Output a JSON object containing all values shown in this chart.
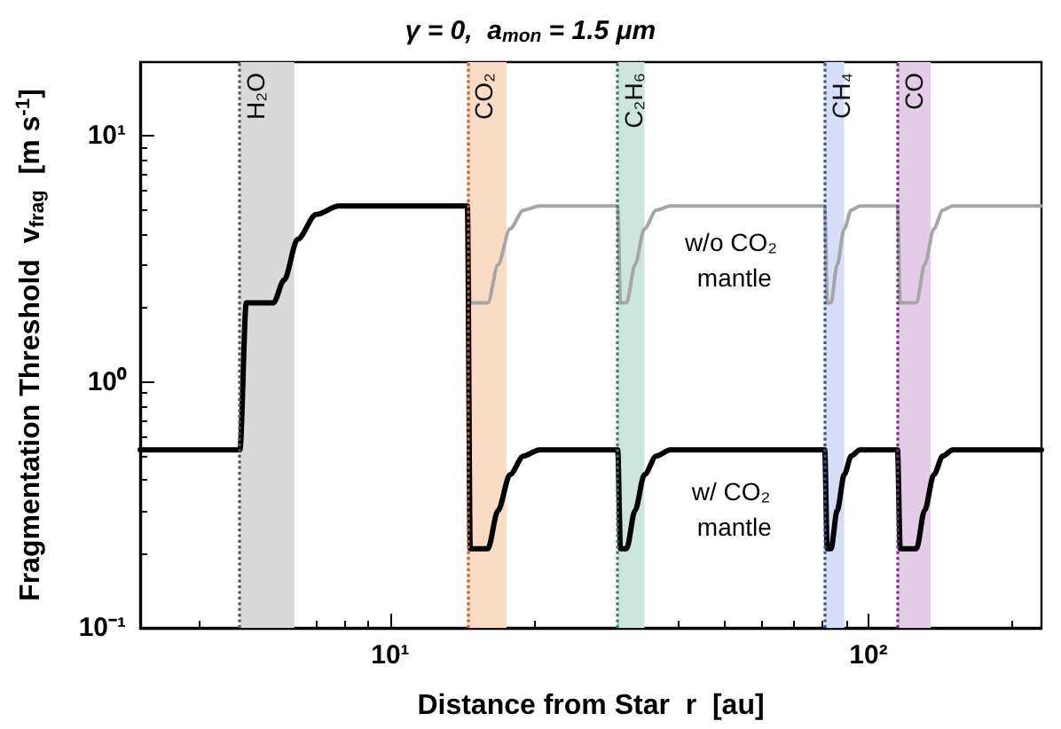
{
  "chart_data": {
    "type": "line",
    "title": "γ = 0,  a$_{mon}$ = 1.5 μm",
    "xlabel": "Distance from Star  r  [au]",
    "ylabel": "Fragmentation Threshold  v$_{frag}$  [m s$^{-1}$]",
    "log": "xy",
    "grid": false,
    "legend": false,
    "marker": "none",
    "line_style": "solid",
    "xlim": [
      3,
      230
    ],
    "ylim": [
      0.1,
      20
    ],
    "xticks": [
      {
        "value": 10,
        "label": "10¹"
      },
      {
        "value": 100,
        "label": "10²"
      }
    ],
    "yticks": [
      {
        "value": 0.1,
        "label": "10⁻¹"
      },
      {
        "value": 1,
        "label": "10⁰"
      },
      {
        "value": 10,
        "label": "10¹"
      }
    ],
    "x": [
      3,
      4.85,
      5.0,
      5.7,
      6.0,
      6.4,
      7.0,
      7.8,
      14.5,
      14.7,
      16.0,
      16.8,
      17.8,
      19.0,
      20.5,
      29.9,
      30.3,
      31.2,
      32.5,
      34,
      36,
      38.5,
      81,
      82,
      83.5,
      86,
      89,
      92,
      96,
      115,
      116.5,
      126,
      131,
      137,
      143,
      150,
      230
    ],
    "series": [
      {
        "name": "w/o CO₂ mantle",
        "color": "#a6a6a6",
        "values": [
          null,
          null,
          null,
          null,
          null,
          null,
          null,
          null,
          5.2,
          2.1,
          2.1,
          3.0,
          4.2,
          5.0,
          5.2,
          5.2,
          2.1,
          2.1,
          3.0,
          4.2,
          5.0,
          5.2,
          5.2,
          2.1,
          2.1,
          3.0,
          4.2,
          5.0,
          5.2,
          5.2,
          2.1,
          2.1,
          3.0,
          4.2,
          5.0,
          5.2,
          5.2
        ]
      },
      {
        "name": "w/ CO₂ mantle",
        "color": "#000000",
        "values": [
          0.53,
          0.53,
          2.1,
          2.1,
          2.6,
          3.8,
          4.8,
          5.2,
          5.2,
          0.21,
          0.21,
          0.3,
          0.42,
          0.5,
          0.53,
          0.53,
          0.21,
          0.21,
          0.3,
          0.42,
          0.5,
          0.53,
          0.53,
          0.21,
          0.21,
          0.3,
          0.42,
          0.5,
          0.53,
          0.53,
          0.21,
          0.21,
          0.3,
          0.42,
          0.5,
          0.53,
          0.53
        ]
      }
    ],
    "bands": [
      {
        "axis": "x",
        "from": 4.85,
        "to": 6.3,
        "label": "H₂O",
        "color": "#d9d9d9"
      },
      {
        "axis": "x",
        "from": 14.5,
        "to": 17.5,
        "label": "CO₂",
        "color": "#f9dcc4"
      },
      {
        "axis": "x",
        "from": 29.9,
        "to": 34,
        "label": "C₂H₆",
        "color": "#cce6de"
      },
      {
        "axis": "x",
        "from": 81,
        "to": 89,
        "label": "CH₄",
        "color": "#d6def5"
      },
      {
        "axis": "x",
        "from": 115,
        "to": 135,
        "label": "CO",
        "color": "#e2cce6"
      }
    ],
    "ref_lines": [
      {
        "axis": "x",
        "value": 4.85,
        "color": "#555555",
        "line_style": "dotted"
      },
      {
        "axis": "x",
        "value": 14.5,
        "color": "#c0642a",
        "line_style": "dotted"
      },
      {
        "axis": "x",
        "value": 29.9,
        "color": "#2e7d6e",
        "line_style": "dotted"
      },
      {
        "axis": "x",
        "value": 81,
        "color": "#3050b0",
        "line_style": "dotted"
      },
      {
        "axis": "x",
        "value": 115,
        "color": "#7a2a8a",
        "line_style": "dotted"
      }
    ]
  }
}
